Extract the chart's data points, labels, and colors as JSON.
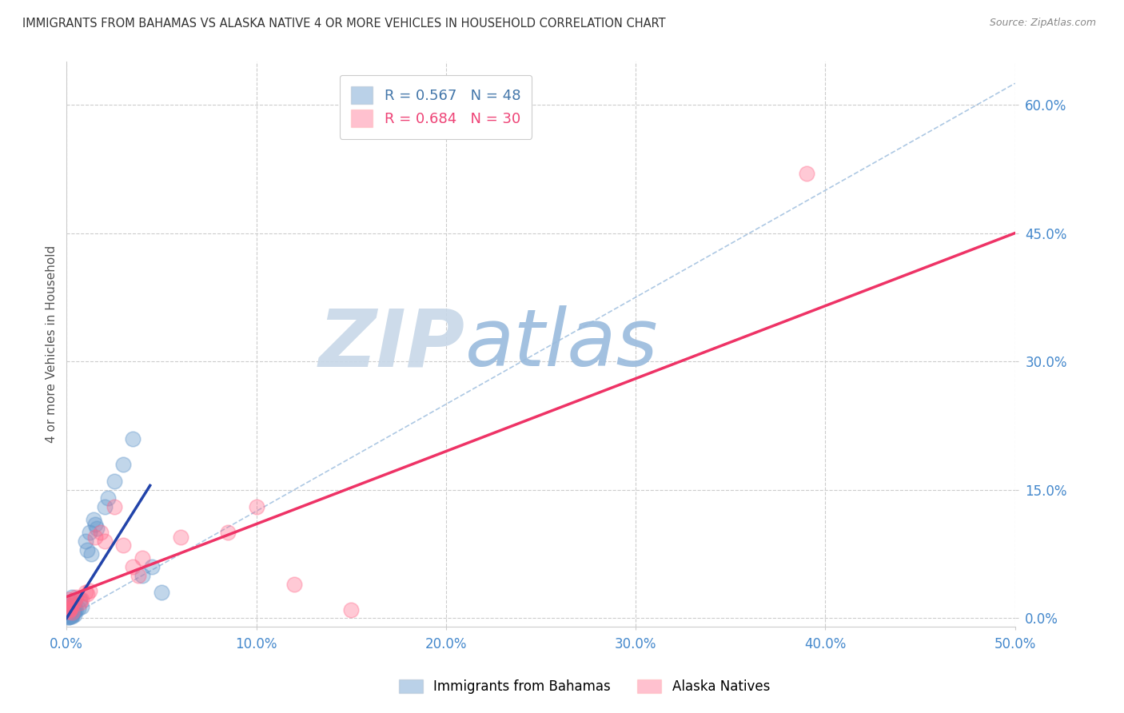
{
  "title": "IMMIGRANTS FROM BAHAMAS VS ALASKA NATIVE 4 OR MORE VEHICLES IN HOUSEHOLD CORRELATION CHART",
  "source": "Source: ZipAtlas.com",
  "ylabel_label": "4 or more Vehicles in Household",
  "xlim": [
    0.0,
    0.5
  ],
  "ylim": [
    -0.01,
    0.65
  ],
  "ytick_vals": [
    0.0,
    0.15,
    0.3,
    0.45,
    0.6
  ],
  "xtick_vals": [
    0.0,
    0.1,
    0.2,
    0.3,
    0.4,
    0.5
  ],
  "legend_labels": [
    "Immigrants from Bahamas",
    "Alaska Natives"
  ],
  "r_blue": 0.567,
  "n_blue": 48,
  "r_pink": 0.684,
  "n_pink": 30,
  "blue_color": "#6699CC",
  "pink_color": "#FF6688",
  "blue_scatter": [
    [
      0.001,
      0.005
    ],
    [
      0.002,
      0.008
    ],
    [
      0.001,
      0.003
    ],
    [
      0.003,
      0.012
    ],
    [
      0.002,
      0.006
    ],
    [
      0.001,
      0.002
    ],
    [
      0.003,
      0.004
    ],
    [
      0.004,
      0.008
    ],
    [
      0.002,
      0.01
    ],
    [
      0.001,
      0.015
    ],
    [
      0.001,
      0.007
    ],
    [
      0.002,
      0.003
    ],
    [
      0.003,
      0.002
    ],
    [
      0.001,
      0.001
    ],
    [
      0.002,
      0.014
    ],
    [
      0.003,
      0.009
    ],
    [
      0.001,
      0.004
    ],
    [
      0.004,
      0.011
    ],
    [
      0.002,
      0.013
    ],
    [
      0.001,
      0.006
    ],
    [
      0.005,
      0.01
    ],
    [
      0.003,
      0.007
    ],
    [
      0.002,
      0.005
    ],
    [
      0.001,
      0.008
    ],
    [
      0.006,
      0.012
    ],
    [
      0.003,
      0.025
    ],
    [
      0.007,
      0.022
    ],
    [
      0.008,
      0.013
    ],
    [
      0.004,
      0.018
    ],
    [
      0.01,
      0.09
    ],
    [
      0.012,
      0.1
    ],
    [
      0.011,
      0.08
    ],
    [
      0.014,
      0.115
    ],
    [
      0.015,
      0.11
    ],
    [
      0.013,
      0.075
    ],
    [
      0.016,
      0.105
    ],
    [
      0.02,
      0.13
    ],
    [
      0.022,
      0.14
    ],
    [
      0.025,
      0.16
    ],
    [
      0.03,
      0.18
    ],
    [
      0.035,
      0.21
    ],
    [
      0.04,
      0.05
    ],
    [
      0.045,
      0.06
    ],
    [
      0.05,
      0.03
    ],
    [
      0.002,
      0.002
    ],
    [
      0.001,
      0.001
    ],
    [
      0.003,
      0.003
    ],
    [
      0.004,
      0.004
    ]
  ],
  "pink_scatter": [
    [
      0.001,
      0.01
    ],
    [
      0.002,
      0.012
    ],
    [
      0.001,
      0.008
    ],
    [
      0.003,
      0.015
    ],
    [
      0.002,
      0.011
    ],
    [
      0.001,
      0.013
    ],
    [
      0.003,
      0.007
    ],
    [
      0.004,
      0.02
    ],
    [
      0.002,
      0.018
    ],
    [
      0.001,
      0.022
    ],
    [
      0.005,
      0.025
    ],
    [
      0.007,
      0.018
    ],
    [
      0.008,
      0.022
    ],
    [
      0.01,
      0.03
    ],
    [
      0.011,
      0.028
    ],
    [
      0.012,
      0.032
    ],
    [
      0.015,
      0.095
    ],
    [
      0.018,
      0.1
    ],
    [
      0.02,
      0.09
    ],
    [
      0.025,
      0.13
    ],
    [
      0.03,
      0.085
    ],
    [
      0.035,
      0.06
    ],
    [
      0.038,
      0.05
    ],
    [
      0.04,
      0.07
    ],
    [
      0.06,
      0.095
    ],
    [
      0.085,
      0.1
    ],
    [
      0.1,
      0.13
    ],
    [
      0.12,
      0.04
    ],
    [
      0.15,
      0.01
    ],
    [
      0.39,
      0.52
    ]
  ],
  "blue_regline": [
    0.0,
    0.044,
    0.0,
    0.155
  ],
  "pink_regline_x": [
    0.0,
    0.5
  ],
  "pink_regline_y": [
    0.025,
    0.45
  ],
  "diag_line_x": [
    0.0,
    0.5
  ],
  "diag_line_y": [
    0.0,
    0.625
  ],
  "watermark_zip": "ZIP",
  "watermark_atlas": "atlas",
  "watermark_color_zip": "#C8D8E8",
  "watermark_color_atlas": "#99BBDD",
  "background_color": "#FFFFFF",
  "grid_color": "#CCCCCC",
  "title_color": "#333333",
  "tick_color": "#4488CC"
}
